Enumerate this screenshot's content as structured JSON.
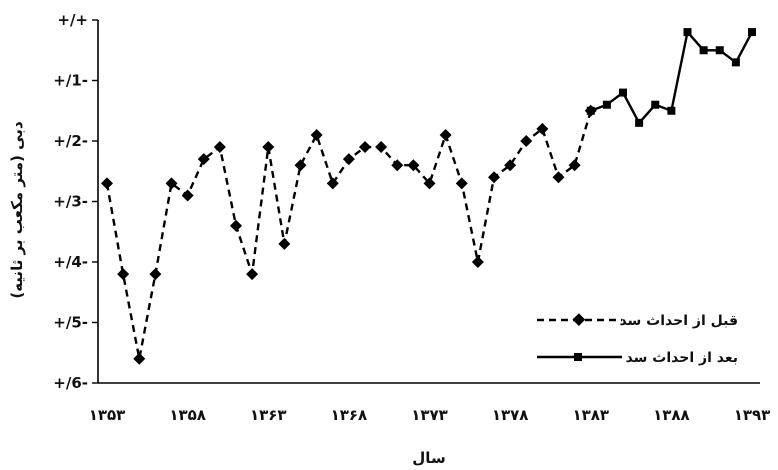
{
  "chart_data": {
    "type": "line",
    "xlabel": "سال",
    "ylabel": "دبی (متر مکعب بر ثانیه)",
    "ylim": [
      -0.6,
      0.0
    ],
    "y_reversed": true,
    "grid": false,
    "legend_position": "bottom-right",
    "yticks": [
      {
        "value": 0.0,
        "label": "+/+"
      },
      {
        "value": -0.1,
        "label": "+/1-"
      },
      {
        "value": -0.2,
        "label": "+/2-"
      },
      {
        "value": -0.3,
        "label": "+/3-"
      },
      {
        "value": -0.4,
        "label": "+/4-"
      },
      {
        "value": -0.5,
        "label": "+/5-"
      },
      {
        "value": -0.6,
        "label": "+/6-"
      }
    ],
    "xlim": [
      1353,
      1393
    ],
    "xticks": [
      {
        "value": 1353,
        "label": "۱۳۵۳"
      },
      {
        "value": 1358,
        "label": "۱۳۵۸"
      },
      {
        "value": 1363,
        "label": "۱۳۶۳"
      },
      {
        "value": 1368,
        "label": "۱۳۶۸"
      },
      {
        "value": 1373,
        "label": "۱۳۷۳"
      },
      {
        "value": 1378,
        "label": "۱۳۷۸"
      },
      {
        "value": 1383,
        "label": "۱۳۸۳"
      },
      {
        "value": 1388,
        "label": "۱۳۸۸"
      },
      {
        "value": 1393,
        "label": "۱۳۹۳"
      }
    ],
    "series": [
      {
        "name": "قبل از احداث سد",
        "style": "dashed",
        "marker": "diamond",
        "color": "#000000",
        "x": [
          1353,
          1354,
          1355,
          1356,
          1357,
          1358,
          1359,
          1360,
          1361,
          1362,
          1363,
          1364,
          1365,
          1366,
          1367,
          1368,
          1369,
          1370,
          1371,
          1372,
          1373,
          1374,
          1375,
          1376,
          1377,
          1378,
          1379,
          1380,
          1381,
          1382,
          1383
        ],
        "y": [
          -0.27,
          -0.42,
          -0.56,
          -0.42,
          -0.27,
          -0.29,
          -0.23,
          -0.21,
          -0.34,
          -0.42,
          -0.21,
          -0.37,
          -0.24,
          -0.19,
          -0.27,
          -0.23,
          -0.21,
          -0.21,
          -0.24,
          -0.24,
          -0.27,
          -0.19,
          -0.27,
          -0.4,
          -0.26,
          -0.24,
          -0.2,
          -0.18,
          -0.26,
          -0.24,
          -0.15
        ]
      },
      {
        "name": "بعد از احداث سد",
        "style": "solid",
        "marker": "square",
        "color": "#000000",
        "x": [
          1383,
          1384,
          1385,
          1386,
          1387,
          1388,
          1389,
          1390,
          1391,
          1392,
          1393
        ],
        "y": [
          -0.15,
          -0.14,
          -0.12,
          -0.17,
          -0.14,
          -0.15,
          -0.02,
          -0.05,
          -0.05,
          -0.07,
          -0.02
        ]
      }
    ]
  }
}
